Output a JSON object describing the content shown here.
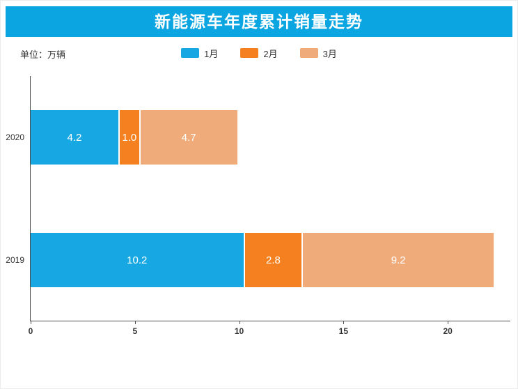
{
  "title": "新能源车年度累计销量走势",
  "unit_label": "单位：万辆",
  "colors": {
    "title_bg": "#0ba6e1",
    "axis": "#4d4d4d",
    "background": "#ffffff",
    "bar_label_text": "#ffffff"
  },
  "chart_data": {
    "type": "bar",
    "orientation": "horizontal",
    "stacked": true,
    "title": "新能源车年度累计销量走势",
    "unit": "万辆",
    "categories": [
      "2020",
      "2019"
    ],
    "series": [
      {
        "name": "1月",
        "color": "#17a8e3",
        "values": [
          4.2,
          10.2
        ]
      },
      {
        "name": "2月",
        "color": "#f5801f",
        "values": [
          1.0,
          2.8
        ]
      },
      {
        "name": "3月",
        "color": "#f0ab7b",
        "values": [
          4.7,
          9.2
        ]
      }
    ],
    "xlim": [
      0,
      23
    ],
    "xticks": [
      0,
      5,
      10,
      15,
      20
    ],
    "legend_position": "top",
    "grid": false
  }
}
